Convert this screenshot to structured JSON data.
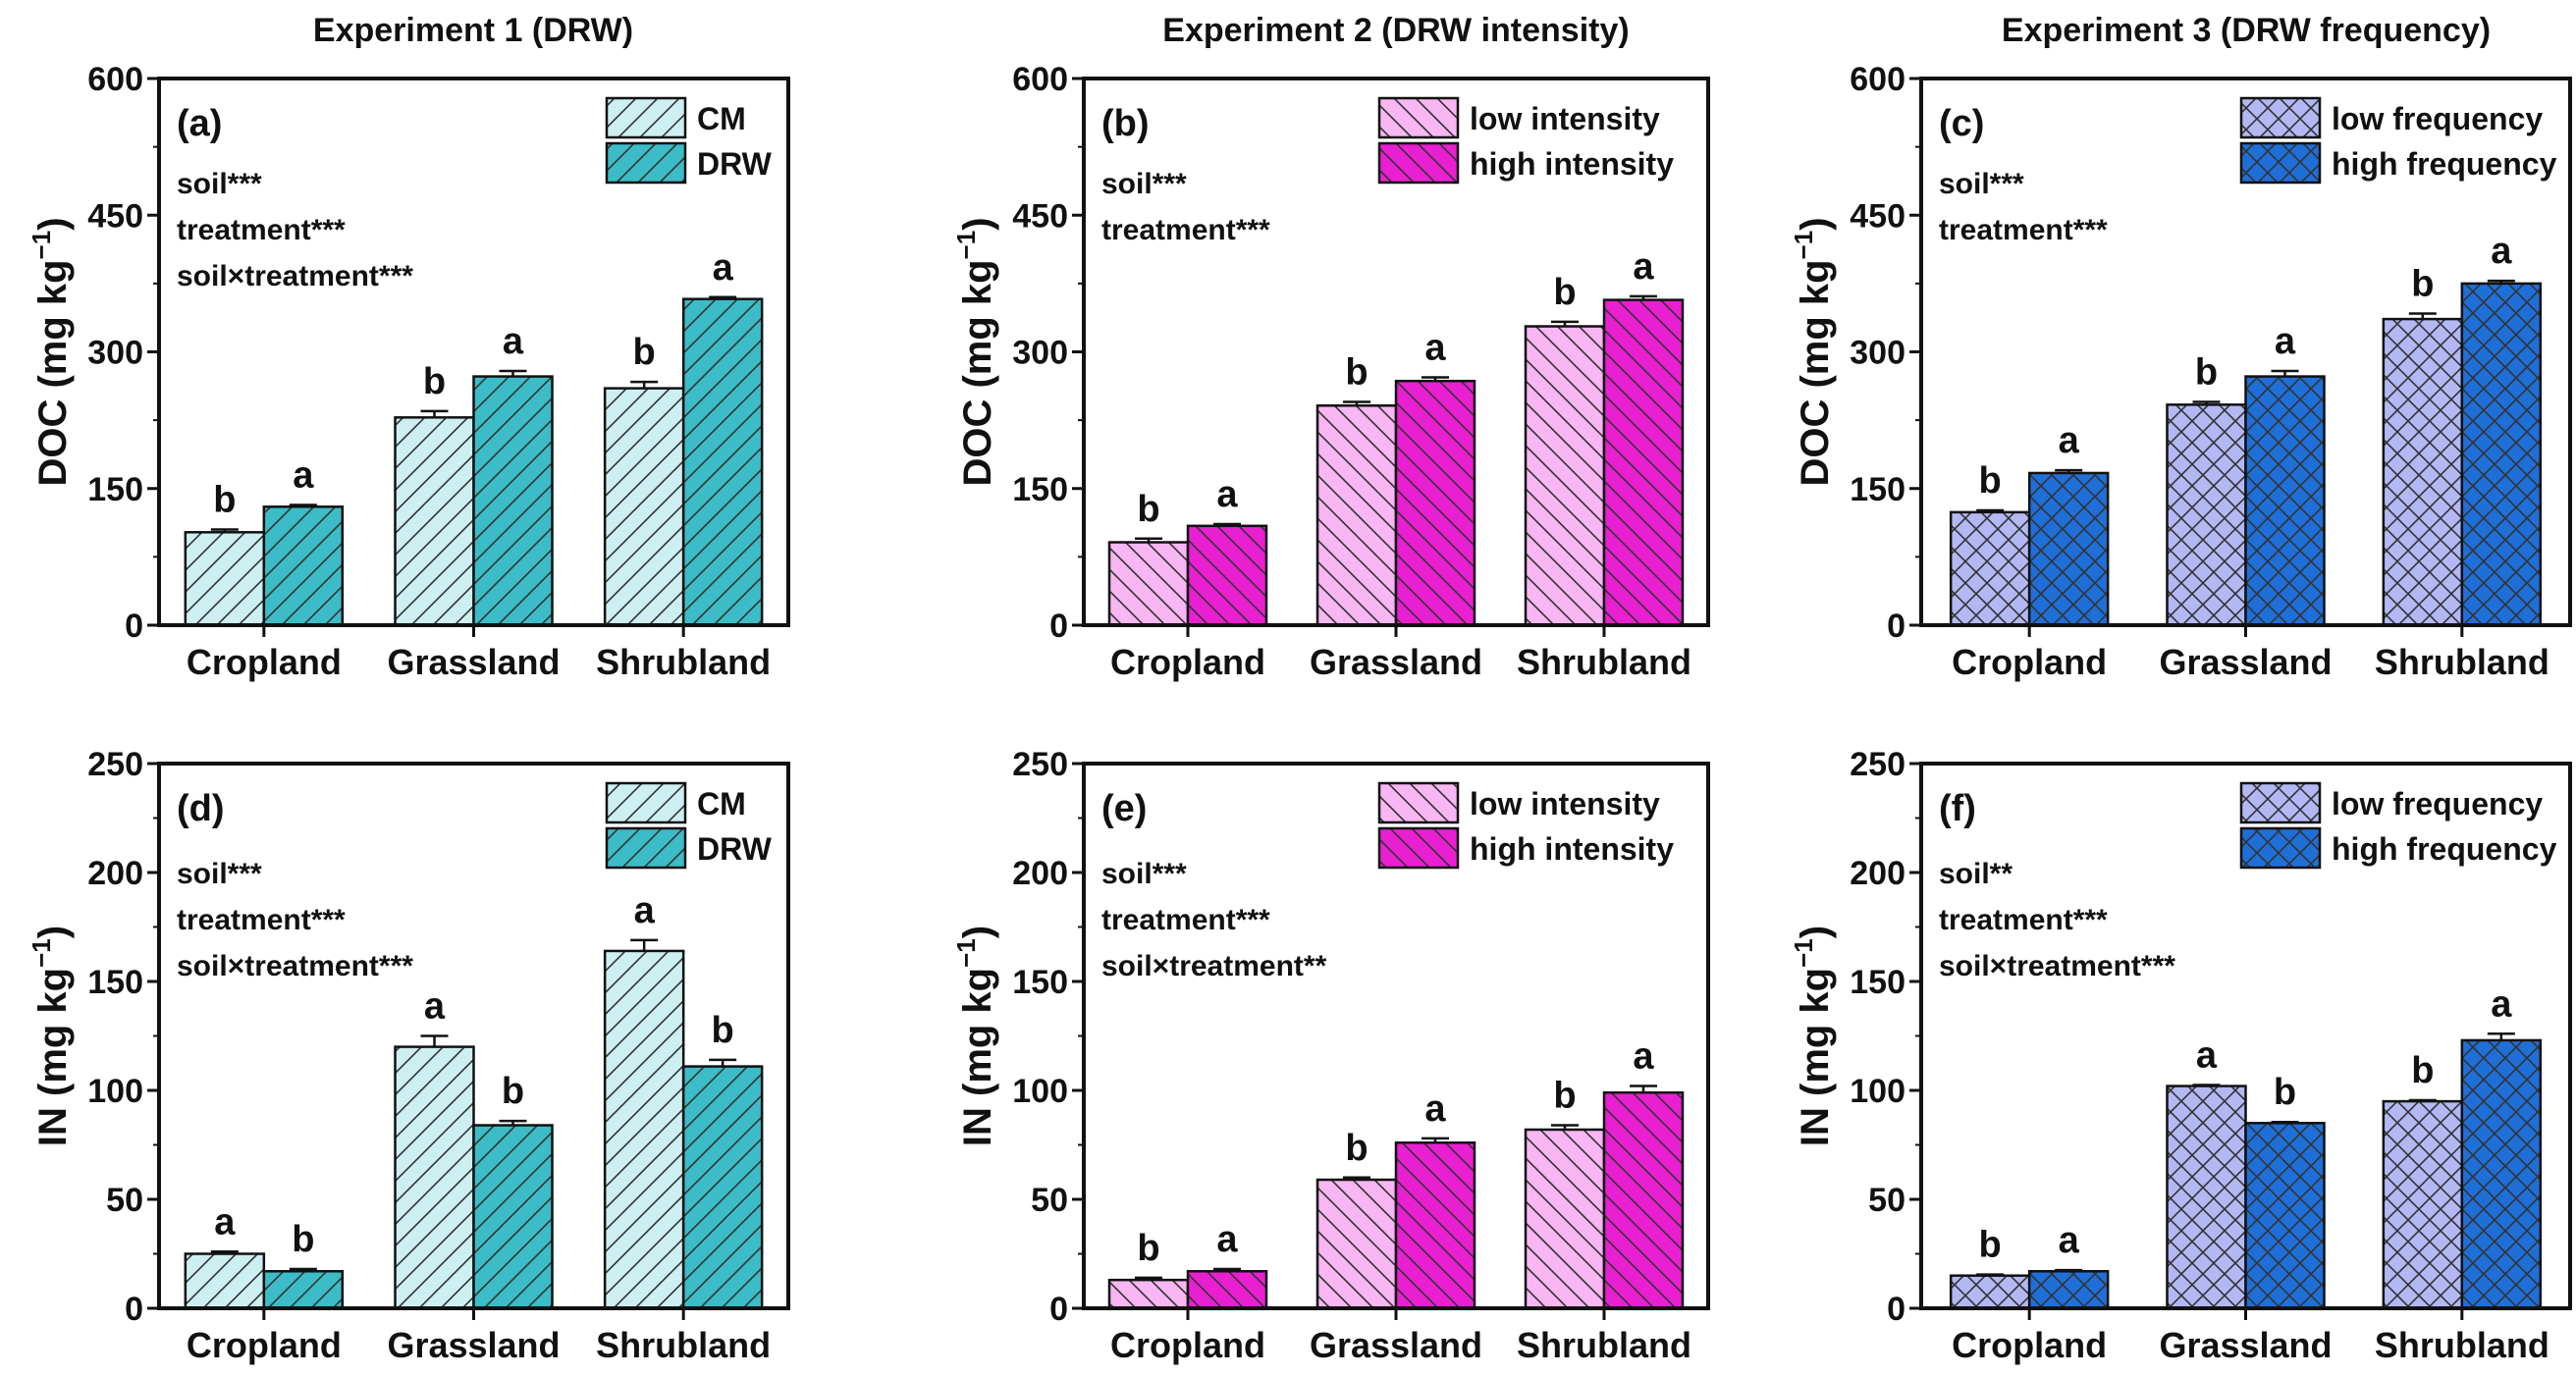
{
  "experiment_titles": [
    "Experiment 1 (DRW)",
    "Experiment 2 (DRW intensity)",
    "Experiment 3 (DRW frequency)"
  ],
  "chart_data": [
    {
      "panel": "(a)",
      "type": "bar",
      "experiment": 0,
      "row": 0,
      "ylabel_main": "DOC (mg kg",
      "ylabel_sup": "−1",
      "ylabel_end": ")",
      "ylim": [
        0,
        600
      ],
      "yticks": [
        0,
        150,
        300,
        450,
        600
      ],
      "categories": [
        "Cropland",
        "Grassland",
        "Shrubland"
      ],
      "pattern": "fwd",
      "stats": [
        "soil***",
        "treatment***",
        "soil×treatment***"
      ],
      "series": [
        {
          "name": "CM",
          "color": "#cdeff1",
          "values": [
            102,
            228,
            260
          ],
          "errors": [
            3,
            7,
            7
          ],
          "letters": [
            "b",
            "b",
            "b"
          ]
        },
        {
          "name": "DRW",
          "color": "#3cbcc6",
          "values": [
            130,
            273,
            358
          ],
          "errors": [
            2,
            6,
            2
          ],
          "letters": [
            "a",
            "a",
            "a"
          ]
        }
      ]
    },
    {
      "panel": "(b)",
      "type": "bar",
      "experiment": 1,
      "row": 0,
      "ylabel_main": "DOC (mg kg",
      "ylabel_sup": "−1",
      "ylabel_end": ")",
      "ylim": [
        0,
        600
      ],
      "yticks": [
        0,
        150,
        300,
        450,
        600
      ],
      "categories": [
        "Cropland",
        "Grassland",
        "Shrubland"
      ],
      "pattern": "back",
      "stats": [
        "soil***",
        "treatment***"
      ],
      "series": [
        {
          "name": "low intensity",
          "color": "#f8b6f2",
          "values": [
            91,
            241,
            328
          ],
          "errors": [
            4,
            4,
            5
          ],
          "letters": [
            "b",
            "b",
            "b"
          ]
        },
        {
          "name": "high intensity",
          "color": "#e91fd2",
          "values": [
            109,
            268,
            357
          ],
          "errors": [
            2,
            4,
            4
          ],
          "letters": [
            "a",
            "a",
            "a"
          ]
        }
      ]
    },
    {
      "panel": "(c)",
      "type": "bar",
      "experiment": 2,
      "row": 0,
      "ylabel_main": "DOC (mg kg",
      "ylabel_sup": "−1",
      "ylabel_end": ")",
      "ylim": [
        0,
        600
      ],
      "yticks": [
        0,
        150,
        300,
        450,
        600
      ],
      "categories": [
        "Cropland",
        "Grassland",
        "Shrubland"
      ],
      "pattern": "cross",
      "stats": [
        "soil***",
        "treatment***"
      ],
      "series": [
        {
          "name": "low frequency",
          "color": "#b3b8f5",
          "values": [
            124,
            242,
            336
          ],
          "errors": [
            2,
            3,
            6
          ],
          "letters": [
            "b",
            "b",
            "b"
          ]
        },
        {
          "name": "high frequency",
          "color": "#1f6fd9",
          "values": [
            167,
            273,
            375
          ],
          "errors": [
            3,
            6,
            3
          ],
          "letters": [
            "a",
            "a",
            "a"
          ]
        }
      ]
    },
    {
      "panel": "(d)",
      "type": "bar",
      "experiment": 0,
      "row": 1,
      "ylabel_main": "IN (mg kg",
      "ylabel_sup": "−1",
      "ylabel_end": ")",
      "ylim": [
        0,
        250
      ],
      "yticks": [
        0,
        50,
        100,
        150,
        200,
        250
      ],
      "categories": [
        "Cropland",
        "Grassland",
        "Shrubland"
      ],
      "pattern": "fwd",
      "stats": [
        "soil***",
        "treatment***",
        "soil×treatment***"
      ],
      "series": [
        {
          "name": "CM",
          "color": "#cdeff1",
          "values": [
            25,
            120,
            164
          ],
          "errors": [
            1,
            5,
            5
          ],
          "letters": [
            "a",
            "a",
            "a"
          ]
        },
        {
          "name": "DRW",
          "color": "#3cbcc6",
          "values": [
            17,
            84,
            111
          ],
          "errors": [
            1,
            2,
            3
          ],
          "letters": [
            "b",
            "b",
            "b"
          ]
        }
      ]
    },
    {
      "panel": "(e)",
      "type": "bar",
      "experiment": 1,
      "row": 1,
      "ylabel_main": "IN (mg kg",
      "ylabel_sup": "−1",
      "ylabel_end": ")",
      "ylim": [
        0,
        250
      ],
      "yticks": [
        0,
        50,
        100,
        150,
        200,
        250
      ],
      "categories": [
        "Cropland",
        "Grassland",
        "Shrubland"
      ],
      "pattern": "back",
      "stats": [
        "soil***",
        "treatment***",
        "soil×treatment**"
      ],
      "series": [
        {
          "name": "low intensity",
          "color": "#f8b6f2",
          "values": [
            13,
            59,
            82
          ],
          "errors": [
            1,
            1,
            2
          ],
          "letters": [
            "b",
            "b",
            "b"
          ]
        },
        {
          "name": "high intensity",
          "color": "#e91fd2",
          "values": [
            17,
            76,
            99
          ],
          "errors": [
            1,
            2,
            3
          ],
          "letters": [
            "a",
            "a",
            "a"
          ]
        }
      ]
    },
    {
      "panel": "(f)",
      "type": "bar",
      "experiment": 2,
      "row": 1,
      "ylabel_main": "IN (mg kg",
      "ylabel_sup": "−1",
      "ylabel_end": ")",
      "ylim": [
        0,
        250
      ],
      "yticks": [
        0,
        50,
        100,
        150,
        200,
        250
      ],
      "categories": [
        "Cropland",
        "Grassland",
        "Shrubland"
      ],
      "pattern": "cross",
      "stats": [
        "soil**",
        "treatment***",
        "soil×treatment***"
      ],
      "series": [
        {
          "name": "low frequency",
          "color": "#b3b8f5",
          "values": [
            15,
            102,
            95
          ],
          "errors": [
            0.5,
            0.5,
            0.5
          ],
          "letters": [
            "b",
            "a",
            "b"
          ]
        },
        {
          "name": "high frequency",
          "color": "#1f6fd9",
          "values": [
            17,
            85,
            123
          ],
          "errors": [
            0.5,
            0.5,
            3
          ],
          "letters": [
            "a",
            "b",
            "a"
          ]
        }
      ]
    }
  ]
}
